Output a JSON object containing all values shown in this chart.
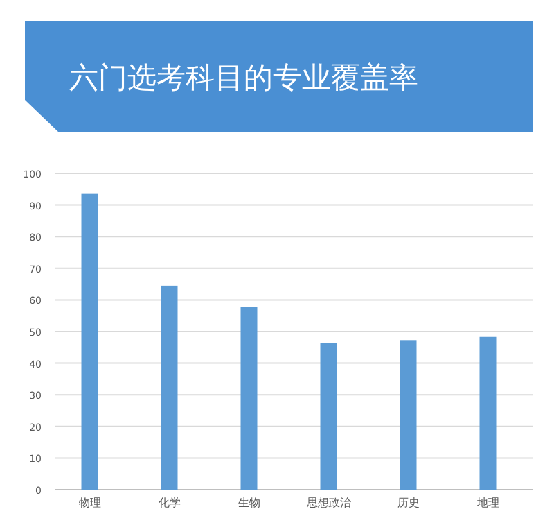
{
  "chart_data": {
    "type": "bar",
    "title": "六门选考科目的专业覆盖率",
    "categories": [
      "物理",
      "化学",
      "生物",
      "思想政治",
      "历史",
      "地理"
    ],
    "values": [
      93.5,
      64.5,
      57.7,
      46.3,
      47.3,
      48.3
    ],
    "color": "#5b9bd5",
    "ylim": [
      0,
      100
    ],
    "yticks": [
      0,
      10,
      20,
      30,
      40,
      50,
      60,
      70,
      80,
      90,
      100
    ],
    "grid": "y"
  }
}
